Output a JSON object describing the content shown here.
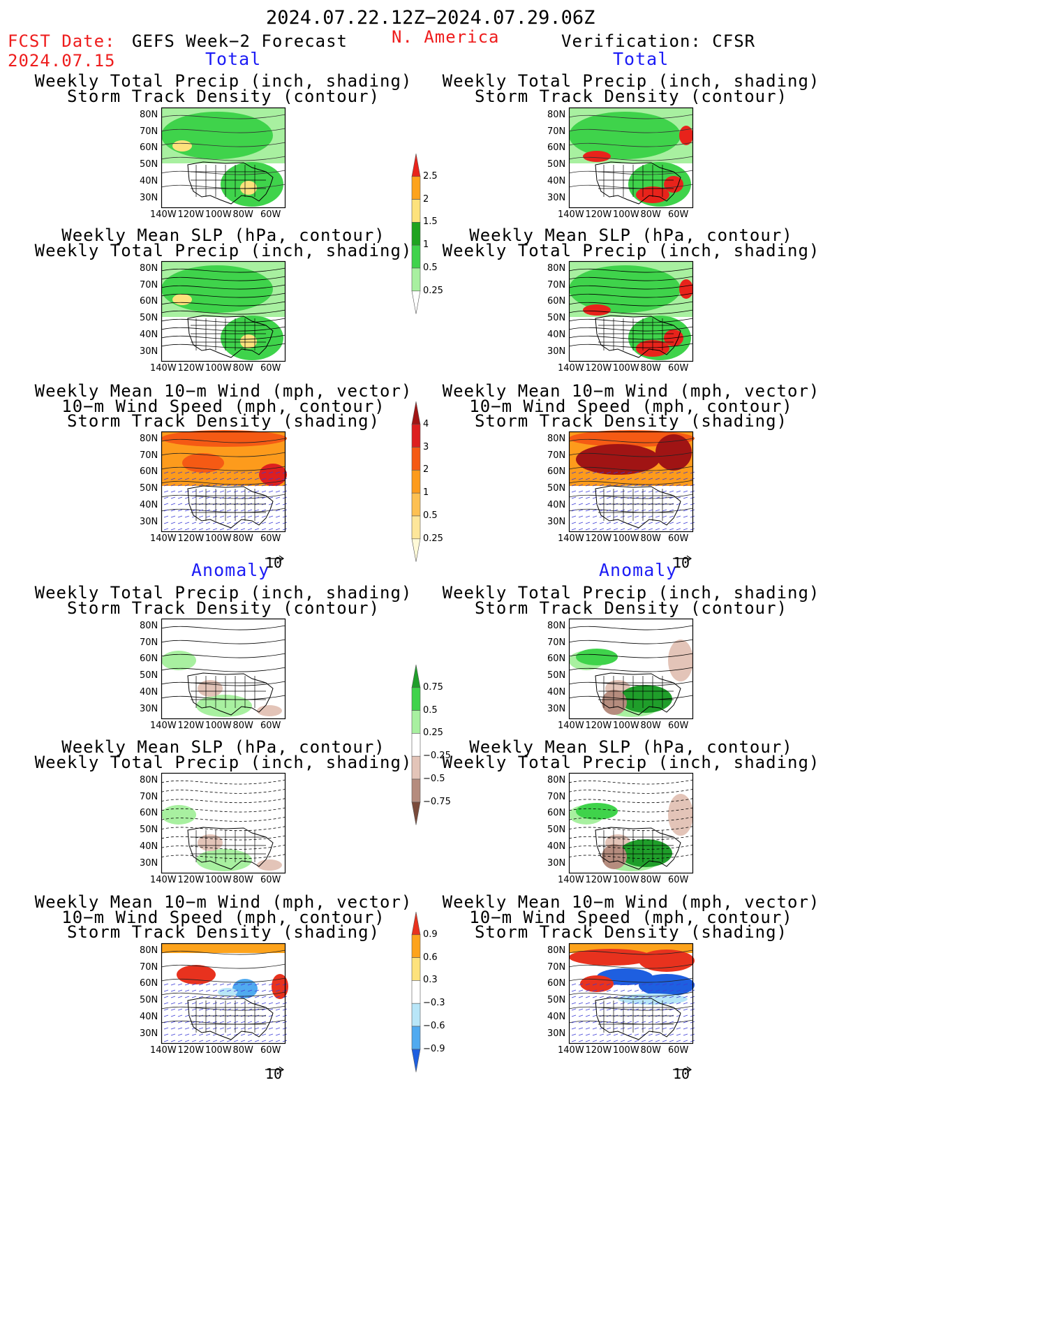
{
  "header": {
    "period": "2024.07.22.12Z−2024.07.29.06Z",
    "fcst_label": "FCST Date:",
    "fcst_date": "2024.07.15",
    "model": "GEFS Week−2 Forecast",
    "region": "N. America",
    "verification": "Verification: CFSR"
  },
  "sections": {
    "total": "Total",
    "anomaly": "Anomaly"
  },
  "titles": {
    "precip_storm": [
      "Weekly Total Precip (inch, shading)",
      "Storm Track Density (contour)"
    ],
    "slp_precip": [
      "Weekly Mean SLP (hPa, contour)",
      "Weekly Total Precip (inch, shading)"
    ],
    "wind_storm": [
      "Weekly Mean 10−m Wind (mph, vector)",
      "10−m Wind Speed (mph, contour)",
      "Storm Track Density (shading)"
    ]
  },
  "axes": {
    "lat_labels": [
      "80N",
      "70N",
      "60N",
      "50N",
      "40N",
      "30N"
    ],
    "lon_labels": [
      "140W",
      "120W",
      "100W",
      "80W",
      "60W"
    ]
  },
  "vector_ref": "10",
  "colorbars": {
    "precip_total": {
      "levels": [
        "2.5",
        "2",
        "1.5",
        "1",
        "0.5",
        "0.25"
      ],
      "colors": [
        "#e8231b",
        "#fda31c",
        "#fde27c",
        "#1fa31f",
        "#3fd34b",
        "#a8f0a0",
        "#ffffff"
      ]
    },
    "storm_total": {
      "levels": [
        "4",
        "3",
        "2",
        "1",
        "0.5",
        "0.25"
      ],
      "colors": [
        "#a01414",
        "#dd1f1f",
        "#f55a14",
        "#fd9b1c",
        "#fdc052",
        "#fde69a",
        "#fffad8"
      ]
    },
    "precip_anom": {
      "levels": [
        "0.75",
        "0.5",
        "0.25",
        "−0.25",
        "−0.5",
        "−0.75"
      ],
      "colors": [
        "#1f9e2a",
        "#3fd34b",
        "#a8f0a0",
        "#ffffff",
        "#e3c4b8",
        "#b58c7e",
        "#7a4a3a"
      ]
    },
    "storm_anom": {
      "levels": [
        "0.9",
        "0.6",
        "0.3",
        "−0.3",
        "−0.6",
        "−0.9"
      ],
      "colors": [
        "#e8321e",
        "#fda31c",
        "#fde27c",
        "#ffffff",
        "#b8e6f8",
        "#50aaf0",
        "#1e5fe0"
      ]
    }
  }
}
